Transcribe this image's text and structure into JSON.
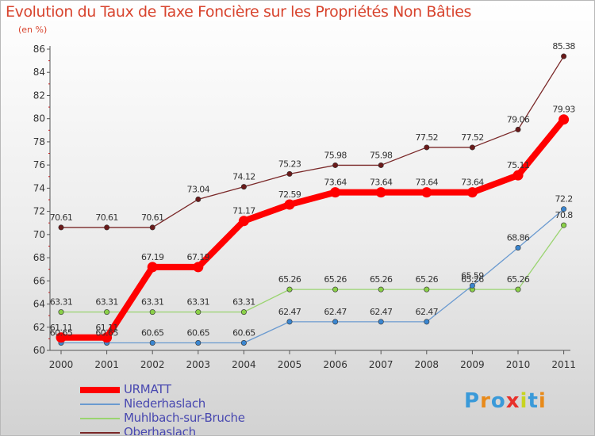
{
  "title": "Evolution du Taux de Taxe Foncière sur les Propriétés Non Bâties",
  "unit": "(en %)",
  "brand": {
    "text": "Proxiti",
    "letter_colors": [
      "#3a9ad9",
      "#e88a1a",
      "#3a9ad9",
      "#e8302a",
      "#c8d420",
      "#3a9ad9",
      "#e88a1a"
    ]
  },
  "chart_data": {
    "type": "line",
    "categories": [
      "2000",
      "2001",
      "2002",
      "2003",
      "2004",
      "2005",
      "2006",
      "2007",
      "2008",
      "2009",
      "2010",
      "2011"
    ],
    "ylim": [
      60,
      86
    ],
    "yticks": [
      "60",
      "62",
      "64",
      "66",
      "68",
      "70",
      "72",
      "74",
      "76",
      "78",
      "80",
      "82",
      "84",
      "86"
    ],
    "grid": false,
    "legend_position": "bottom-left",
    "series": [
      {
        "name": "Oberhaslach",
        "color": "#7a2828",
        "marker": "#6a1a1a",
        "values": [
          70.61,
          70.61,
          70.61,
          73.04,
          74.12,
          75.23,
          75.98,
          75.98,
          77.52,
          77.52,
          79.06,
          85.38
        ],
        "labels": [
          "70.61",
          "70.61",
          "70.61",
          "73.04",
          "74.12",
          "75.23",
          "75.98",
          "75.98",
          "77.52",
          "77.52",
          "79.06",
          "85.38"
        ]
      },
      {
        "name": "Muhlbach-sur-Bruche",
        "color": "#9ad470",
        "marker": "#8ad048",
        "values": [
          63.31,
          63.31,
          63.31,
          63.31,
          63.31,
          65.26,
          65.26,
          65.26,
          65.26,
          65.26,
          65.26,
          70.8
        ],
        "labels": [
          "63.31",
          "63.31",
          "63.31",
          "63.31",
          "63.31",
          "65.26",
          "65.26",
          "65.26",
          "65.26",
          "65.26",
          "65.26",
          "70.8"
        ]
      },
      {
        "name": "Niederhaslach",
        "color": "#6a9ad0",
        "marker": "#3a86d0",
        "values": [
          60.65,
          60.65,
          60.65,
          60.65,
          60.65,
          62.47,
          62.47,
          62.47,
          62.47,
          65.59,
          68.86,
          72.2
        ],
        "labels": [
          "60.65",
          "60.65",
          "60.65",
          "60.65",
          "60.65",
          "62.47",
          "62.47",
          "62.47",
          "62.47",
          "65.59",
          "68.86",
          "72.2"
        ]
      },
      {
        "name": "URMATT",
        "color": "#ff0000",
        "marker": "#ff0000",
        "values": [
          61.11,
          61.11,
          67.19,
          67.19,
          71.17,
          72.59,
          73.64,
          73.64,
          73.64,
          73.64,
          75.11,
          79.93
        ],
        "labels": [
          "61.11",
          "61.11",
          "67.19",
          "67.19",
          "71.17",
          "72.59",
          "73.64",
          "73.64",
          "73.64",
          "73.64",
          "75.11",
          "79.93"
        ]
      }
    ],
    "legend_order": [
      "URMATT",
      "Niederhaslach",
      "Muhlbach-sur-Bruche",
      "Oberhaslach"
    ]
  }
}
